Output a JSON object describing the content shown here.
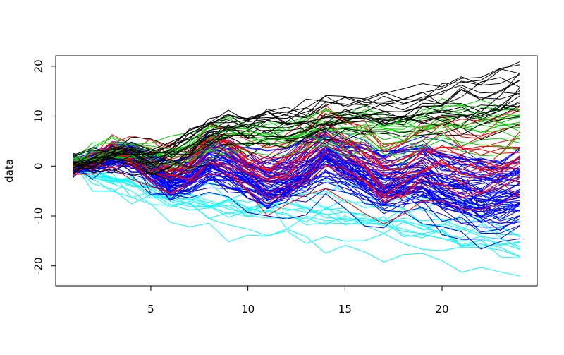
{
  "chart_data": {
    "type": "line",
    "title": "",
    "xlabel": "",
    "ylabel": "data",
    "xlim": [
      0.1,
      24.9
    ],
    "ylim": [
      -24.0,
      22.1
    ],
    "x": [
      1,
      2,
      3,
      4,
      5,
      6,
      7,
      8,
      9,
      10,
      11,
      12,
      13,
      14,
      15,
      16,
      17,
      18,
      19,
      20,
      21,
      22,
      23,
      24
    ],
    "x_ticks": [
      5,
      10,
      15,
      20
    ],
    "y_ticks": [
      -20,
      -10,
      0,
      10,
      20
    ],
    "x_tick_labels": [
      "5",
      "10",
      "15",
      "20"
    ],
    "y_tick_labels": [
      "-20",
      "-10",
      "0",
      "10",
      "20"
    ],
    "grid": false,
    "legend": "none",
    "series_groups": [
      {
        "color": "#00ffff",
        "count": 15,
        "drift": -0.62,
        "mean_path": [
          0,
          -2,
          -3,
          -4,
          -5,
          -6,
          -6,
          -7,
          -7,
          -8,
          -8,
          -8,
          -9,
          -9,
          -10,
          -10,
          -11,
          -11,
          -12,
          -12,
          -13,
          -13,
          -14,
          -15
        ],
        "spread": 3.5
      },
      {
        "color": "#0000ff",
        "count": 70,
        "mean_path": [
          0,
          1,
          2,
          2,
          0,
          -3,
          -2,
          1,
          0,
          -2,
          -4,
          -3,
          -1,
          2,
          0,
          -2,
          -4,
          -3,
          -2,
          -4,
          -5,
          -6,
          -6,
          -5
        ],
        "spread": 3.5
      },
      {
        "color": "#ff0000",
        "count": 20,
        "mean_path": [
          0,
          1,
          3,
          2,
          0,
          -1,
          0,
          4,
          3,
          0,
          -2,
          -1,
          2,
          5,
          3,
          1,
          -3,
          -2,
          1,
          2,
          0,
          0,
          1,
          2
        ],
        "spread": 3.0
      },
      {
        "color": "#00cd00",
        "count": 15,
        "mean_path": [
          1,
          2,
          3,
          3,
          2,
          2,
          3,
          5,
          6,
          6,
          6,
          6,
          7,
          8,
          8,
          8,
          7,
          7,
          8,
          9,
          9,
          9,
          9,
          9
        ],
        "spread": 2.0
      },
      {
        "color": "#000000",
        "count": 20,
        "mean_path": [
          0,
          1,
          2,
          2,
          1,
          2,
          4,
          6,
          7,
          7,
          8,
          8,
          8,
          9,
          10,
          10,
          10,
          10,
          11,
          11,
          12,
          12,
          13,
          14
        ],
        "spread": 3.0
      }
    ]
  }
}
